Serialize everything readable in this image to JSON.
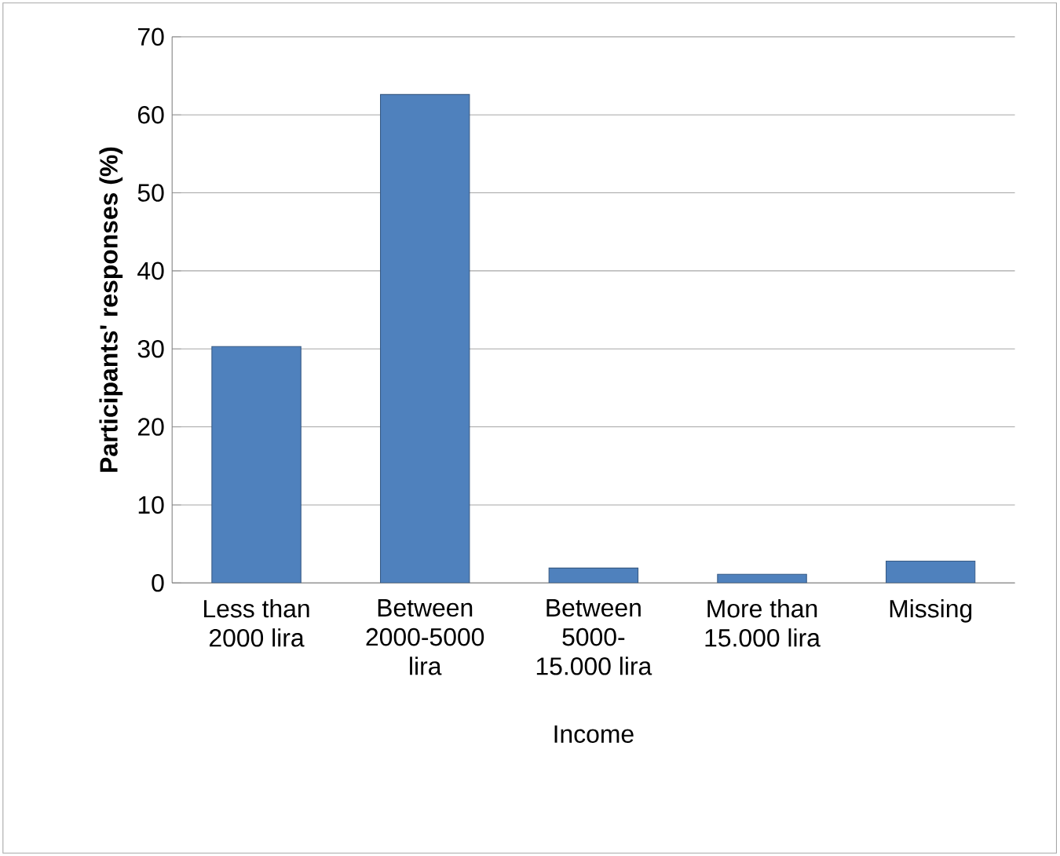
{
  "chart_data": {
    "type": "bar",
    "xlabel": "Income",
    "ylabel": "Participants' responses  (%)",
    "categories": [
      "Less than 2000 lira",
      "Between 2000-5000 lira",
      "Between 5000-15.000 lira",
      "More than 15.000 lira",
      "Missing"
    ],
    "values": [
      30.3,
      62.6,
      1.9,
      1.1,
      2.8
    ],
    "color": "#4f81bd",
    "ylim": [
      0,
      70
    ],
    "yticks": [
      0,
      10,
      20,
      30,
      40,
      50,
      60,
      70
    ],
    "grid": "y"
  }
}
